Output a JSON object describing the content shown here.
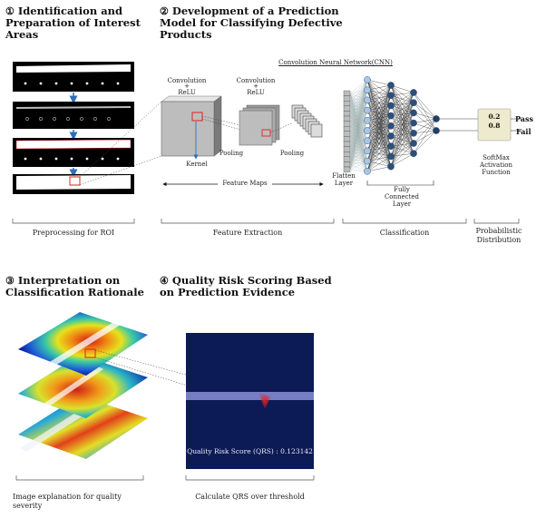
{
  "steps": [
    {
      "num": "①",
      "title_l1": "Identification and",
      "title_l2": "Preparation of Interest",
      "title_l3": "Areas"
    },
    {
      "num": "②",
      "title_l1": "Development of a Prediction",
      "title_l2": "Model for Classifying Defective",
      "title_l3": "Products"
    },
    {
      "num": "③",
      "title_l1": "Interpretation on",
      "title_l2": "Classification Rationale"
    },
    {
      "num": "④",
      "title_l1": "Quality Risk Scoring Based",
      "title_l2": "on Prediction Evidence"
    }
  ],
  "cnn": {
    "title": "Convolution Neural Network(CNN)",
    "conv1_l1": "Convolution",
    "conv1_plus": "+",
    "conv1_l2": "ReLU",
    "conv2_l1": "Convolution",
    "conv2_plus": "+",
    "conv2_l2": "ReLU",
    "kernel": "Kernel",
    "pooling1": "Pooling",
    "pooling2": "Pooling",
    "feature_maps": "Feature Maps",
    "flatten_l1": "Flatten",
    "flatten_l2": "Layer",
    "fc_l1": "Fully",
    "fc_l2": "Connected",
    "fc_l3": "Layer",
    "prob_top": "0.2",
    "prob_bottom": "0.8",
    "pass": "Pass",
    "fail": "Fail",
    "softmax_l1": "SoftMax",
    "softmax_l2": "Activation",
    "softmax_l3": "Function"
  },
  "captions": {
    "roi": "Preprocessing for ROI",
    "feature_extraction": "Feature Extraction",
    "classification": "Classification",
    "prob_l1": "Probabilistic",
    "prob_l2": "Distribution",
    "explanation_l1": "Image explanation for quality",
    "explanation_l2": "severity",
    "qrs": "Calculate QRS over threshold"
  },
  "qrs_panel": {
    "label": "Quality Risk Score (QRS) : 0.123142"
  },
  "colors": {
    "accent_red": "#e0201c",
    "arrow_blue": "#2f6fb8",
    "node_blue": "#1f3f66",
    "node_light": "#a8c6e4",
    "dark_navy": "#0c1a55",
    "softmax_bg": "#eeeacd"
  }
}
